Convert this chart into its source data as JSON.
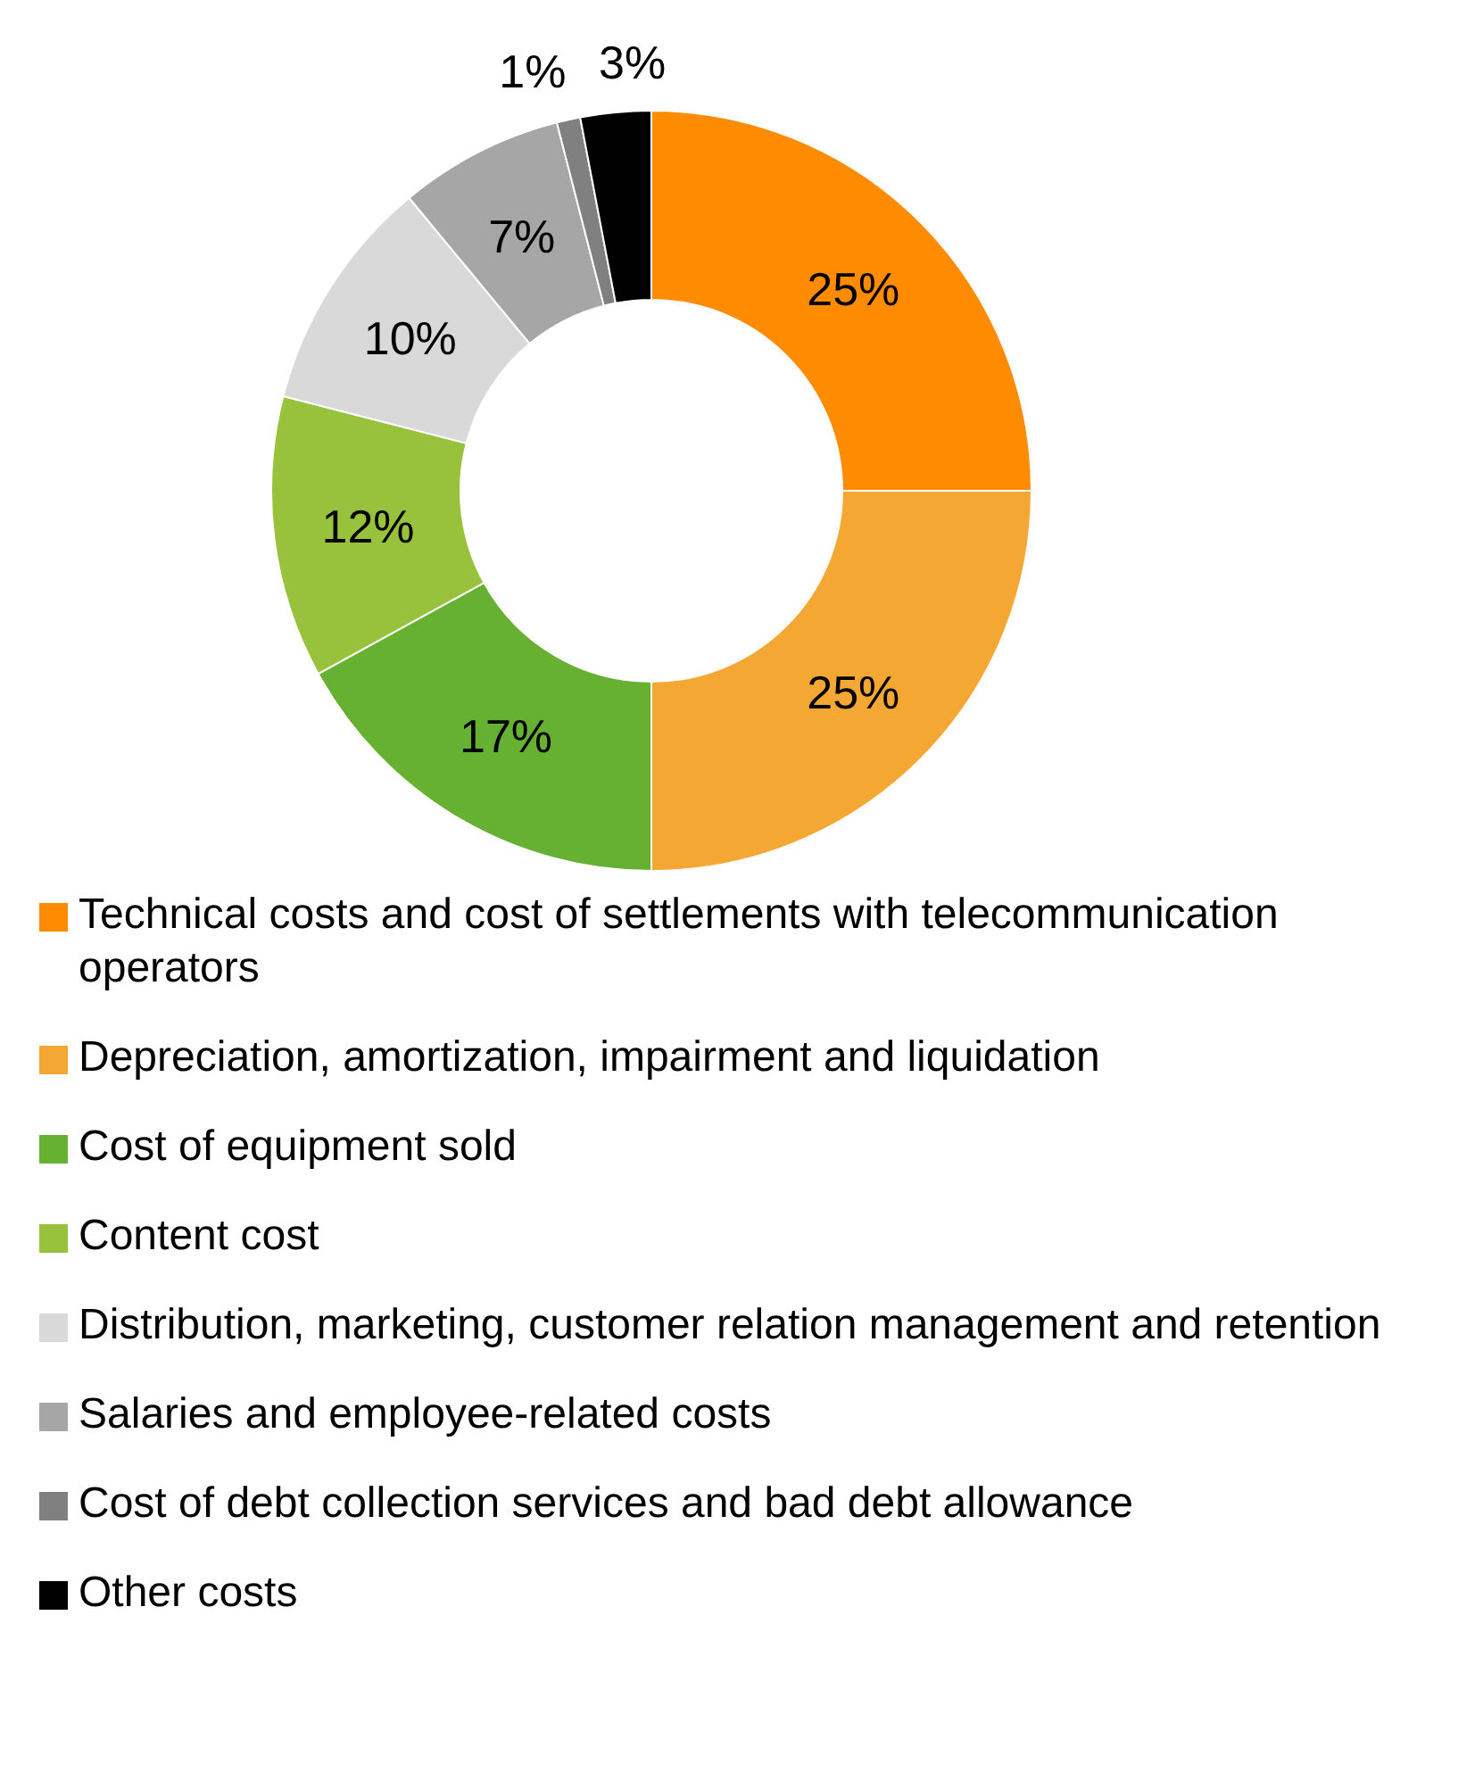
{
  "chart_data": {
    "type": "donut",
    "categories": [
      "Technical costs and cost of settlements with telecommunication operators",
      "Depreciation, amortization, impairment and liquidation",
      "Cost of equipment sold",
      "Content cost",
      "Distribution, marketing, customer relation management and retention",
      "Salaries and employee-related costs",
      "Cost of debt collection services and bad debt allowance",
      "Other costs"
    ],
    "values": [
      25,
      25,
      17,
      12,
      10,
      7,
      1,
      3
    ],
    "value_labels": [
      "25%",
      "25%",
      "17%",
      "12%",
      "10%",
      "7%",
      "1%",
      "3%"
    ],
    "colors": [
      "#ff8c00",
      "#f5a733",
      "#66b032",
      "#99c23c",
      "#d9d9d9",
      "#a6a6a6",
      "#808080",
      "#000000"
    ],
    "legend": "bottom"
  }
}
